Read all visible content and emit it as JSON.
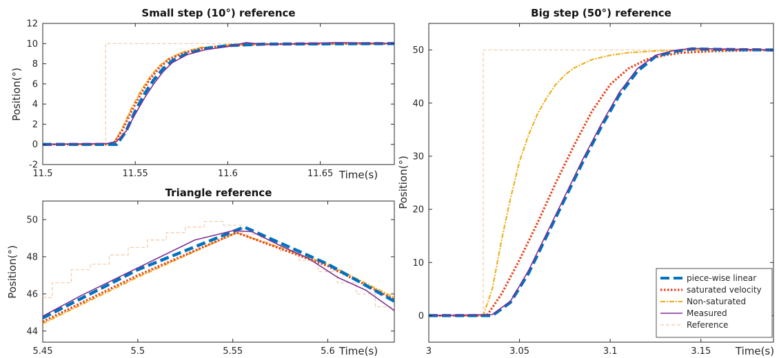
{
  "colors": {
    "piecewise": "#0072BD",
    "saturated": "#E8421A",
    "nonsat": "#EDB120",
    "measured": "#7E2F8E",
    "reference": "#F0C8A8"
  },
  "legend": {
    "placement": "bottom-right",
    "entries": [
      "piece-wise linear",
      "saturated velocity",
      "Non-saturated",
      "Measured",
      "Reference"
    ]
  },
  "chart_data": [
    {
      "type": "line",
      "title": "Small step (10°) reference",
      "xlabel": "Time(s)",
      "ylabel": "Position(°)",
      "xlim": [
        11.5,
        11.69
      ],
      "ylim": [
        -2,
        12
      ],
      "xticks": [
        11.5,
        11.55,
        11.6,
        11.65
      ],
      "xtick_labels": [
        "11.5",
        "11.55",
        "11.6",
        "11.65"
      ],
      "yticks": [
        -2,
        0,
        2,
        4,
        6,
        8,
        10,
        12
      ],
      "ytick_labels": [
        "-2",
        "0",
        "2",
        "4",
        "6",
        "8",
        "10",
        "12"
      ],
      "series": [
        {
          "name": "Reference",
          "x": [
            11.5,
            11.534,
            11.534,
            11.69
          ],
          "y": [
            0,
            0,
            10,
            10
          ]
        },
        {
          "name": "Non-saturated",
          "x": [
            11.5,
            11.538,
            11.543,
            11.548,
            11.553,
            11.558,
            11.563,
            11.568,
            11.575,
            11.585,
            11.6,
            11.62,
            11.69
          ],
          "y": [
            0,
            0,
            1.6,
            3.6,
            5.3,
            6.7,
            7.8,
            8.5,
            9.1,
            9.6,
            9.85,
            9.95,
            10
          ]
        },
        {
          "name": "saturated velocity",
          "x": [
            11.5,
            11.538,
            11.543,
            11.548,
            11.553,
            11.558,
            11.563,
            11.568,
            11.575,
            11.585,
            11.6,
            11.62,
            11.69
          ],
          "y": [
            0,
            0,
            1.4,
            3.3,
            5.0,
            6.5,
            7.6,
            8.4,
            9.0,
            9.5,
            9.8,
            9.95,
            10
          ]
        },
        {
          "name": "piece-wise linear",
          "x": [
            11.5,
            11.54,
            11.545,
            11.55,
            11.555,
            11.56,
            11.565,
            11.57,
            11.578,
            11.588,
            11.6,
            11.62,
            11.69
          ],
          "y": [
            0,
            0,
            1.3,
            3.3,
            5.0,
            6.4,
            7.5,
            8.3,
            9.0,
            9.5,
            9.8,
            9.95,
            10
          ]
        },
        {
          "name": "Measured",
          "x": [
            11.5,
            11.52,
            11.535,
            11.54,
            11.545,
            11.55,
            11.555,
            11.56,
            11.565,
            11.57,
            11.578,
            11.588,
            11.6,
            11.61,
            11.62,
            11.64,
            11.66,
            11.69
          ],
          "y": [
            0,
            0.05,
            0.1,
            0.3,
            1.3,
            3.0,
            4.6,
            6.0,
            7.2,
            8.1,
            8.9,
            9.4,
            9.7,
            10.1,
            9.9,
            10.0,
            10.1,
            10.0
          ]
        }
      ]
    },
    {
      "type": "line",
      "title": "Triangle reference",
      "xlabel": "Time(s)",
      "ylabel": "Position(°)",
      "xlim": [
        5.45,
        5.635
      ],
      "ylim": [
        43.4,
        51.0
      ],
      "xticks": [
        5.45,
        5.5,
        5.55,
        5.6
      ],
      "xtick_labels": [
        "5.45",
        "5.5",
        "5.55",
        "5.6"
      ],
      "yticks": [
        44,
        46,
        48,
        50
      ],
      "ytick_labels": [
        "44",
        "46",
        "48",
        "50"
      ],
      "series": [
        {
          "name": "Reference",
          "x": [
            5.45,
            5.455,
            5.455,
            5.465,
            5.465,
            5.475,
            5.475,
            5.485,
            5.485,
            5.495,
            5.495,
            5.505,
            5.505,
            5.515,
            5.515,
            5.525,
            5.525,
            5.535,
            5.535,
            5.545,
            5.545,
            5.555,
            5.555,
            5.565,
            5.565,
            5.575,
            5.575,
            5.585,
            5.585,
            5.595,
            5.595,
            5.605,
            5.605,
            5.615,
            5.615,
            5.625,
            5.625,
            5.635
          ],
          "y": [
            45.8,
            45.8,
            46.6,
            46.6,
            47.3,
            47.3,
            47.6,
            47.6,
            48.1,
            48.1,
            48.5,
            48.5,
            48.9,
            48.9,
            49.3,
            49.3,
            49.6,
            49.6,
            49.9,
            49.9,
            49.7,
            49.7,
            49.2,
            49.2,
            48.8,
            48.8,
            48.3,
            48.3,
            47.8,
            47.8,
            47.2,
            47.2,
            46.6,
            46.6,
            46.0,
            46.0,
            45.3,
            45.3
          ]
        },
        {
          "name": "Non-saturated",
          "x": [
            5.45,
            5.5,
            5.552,
            5.6,
            5.635
          ],
          "y": [
            44.4,
            46.9,
            49.3,
            47.6,
            45.8
          ]
        },
        {
          "name": "saturated velocity",
          "x": [
            5.45,
            5.5,
            5.552,
            5.6,
            5.635
          ],
          "y": [
            44.5,
            47.0,
            49.3,
            47.5,
            45.7
          ]
        },
        {
          "name": "piece-wise linear",
          "x": [
            5.45,
            5.5,
            5.556,
            5.6,
            5.635
          ],
          "y": [
            44.7,
            47.3,
            49.6,
            47.6,
            45.6
          ]
        },
        {
          "name": "Measured",
          "x": [
            5.45,
            5.47,
            5.49,
            5.51,
            5.53,
            5.55,
            5.56,
            5.575,
            5.59,
            5.605,
            5.62,
            5.635
          ],
          "y": [
            44.8,
            45.9,
            46.9,
            47.9,
            48.9,
            49.4,
            49.35,
            48.6,
            47.9,
            46.9,
            46.2,
            45.1
          ]
        }
      ]
    },
    {
      "type": "line",
      "title": "Big step (50°) reference",
      "xlabel": "Time(s)",
      "ylabel": "Position(°)",
      "xlim": [
        3.0,
        3.19
      ],
      "ylim": [
        -5,
        55
      ],
      "xticks": [
        3.0,
        3.05,
        3.1,
        3.15
      ],
      "xtick_labels": [
        "3",
        "3.05",
        "3.1",
        "3.15"
      ],
      "yticks": [
        0,
        10,
        20,
        30,
        40,
        50
      ],
      "ytick_labels": [
        "0",
        "10",
        "20",
        "30",
        "40",
        "50"
      ],
      "series": [
        {
          "name": "Reference",
          "x": [
            3.0,
            3.03,
            3.03,
            3.19
          ],
          "y": [
            0,
            0,
            50,
            50
          ]
        },
        {
          "name": "Non-saturated",
          "x": [
            3.0,
            3.03,
            3.035,
            3.04,
            3.045,
            3.05,
            3.055,
            3.06,
            3.065,
            3.07,
            3.075,
            3.08,
            3.09,
            3.1,
            3.11,
            3.13,
            3.15,
            3.19
          ],
          "y": [
            0,
            0,
            5,
            14,
            22,
            29,
            34,
            38,
            41,
            43.5,
            45.3,
            46.6,
            48.2,
            49.0,
            49.5,
            49.9,
            50,
            50
          ]
        },
        {
          "name": "saturated velocity",
          "x": [
            3.0,
            3.032,
            3.04,
            3.05,
            3.06,
            3.07,
            3.08,
            3.09,
            3.1,
            3.11,
            3.12,
            3.13,
            3.14,
            3.16,
            3.19
          ],
          "y": [
            0,
            0,
            4,
            10.5,
            17.5,
            25,
            32,
            38.5,
            43.5,
            46.5,
            48.2,
            49.0,
            49.5,
            49.8,
            50
          ]
        },
        {
          "name": "piece-wise linear",
          "x": [
            3.0,
            3.035,
            3.045,
            3.055,
            3.065,
            3.075,
            3.085,
            3.095,
            3.105,
            3.115,
            3.125,
            3.135,
            3.145,
            3.16,
            3.19
          ],
          "y": [
            0,
            0,
            2.5,
            8,
            15,
            22,
            29,
            35.5,
            41.5,
            46.0,
            48.8,
            49.7,
            50.2,
            50.1,
            50
          ]
        },
        {
          "name": "Measured",
          "x": [
            3.0,
            3.035,
            3.045,
            3.055,
            3.065,
            3.075,
            3.085,
            3.095,
            3.105,
            3.115,
            3.125,
            3.135,
            3.145,
            3.16,
            3.19
          ],
          "y": [
            0,
            0.2,
            2.7,
            8.5,
            15.5,
            22.5,
            29.5,
            36.0,
            42.0,
            46.5,
            49.0,
            49.9,
            50.3,
            50.2,
            50
          ]
        }
      ]
    }
  ]
}
